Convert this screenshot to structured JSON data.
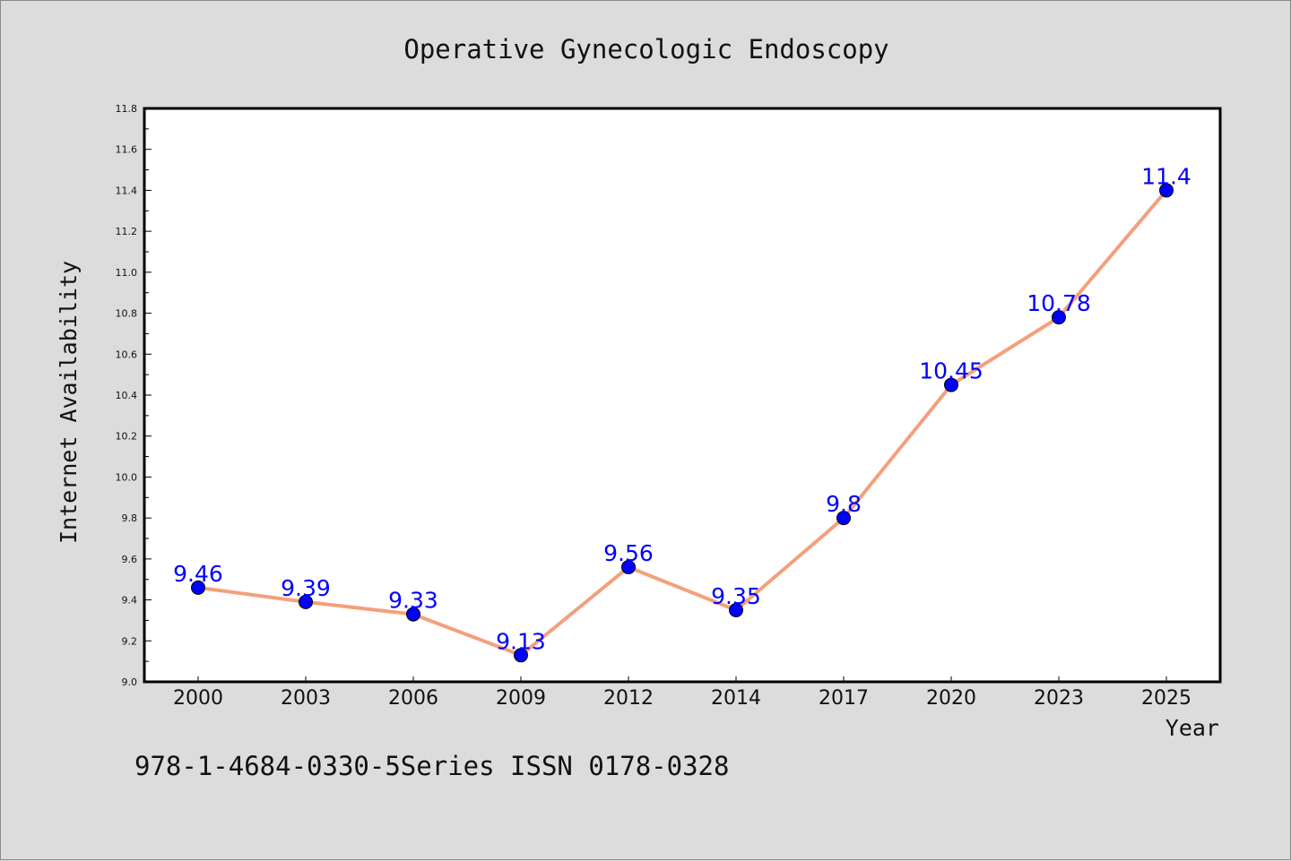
{
  "chart_data": {
    "type": "line",
    "title": "Operative Gynecologic Endoscopy",
    "xlabel": "Year",
    "ylabel": "Internet Availability",
    "categories": [
      "2000",
      "2003",
      "2006",
      "2009",
      "2012",
      "2014",
      "2017",
      "2020",
      "2023",
      "2025"
    ],
    "series": [
      {
        "values": [
          9.46,
          9.39,
          9.33,
          9.13,
          9.56,
          9.35,
          9.8,
          10.45,
          10.78,
          11.4
        ],
        "data_labels": [
          "9.46",
          "9.39",
          "9.33",
          "9.13",
          "9.56",
          "9.35",
          "9.8",
          "10.45",
          "10.78",
          "11.4"
        ],
        "line_color": "#f4a07c",
        "marker_color": "#0000ff"
      }
    ],
    "ylim": [
      9.0,
      11.8
    ],
    "yticks": [
      "9.0",
      "9.2",
      "9.4",
      "9.6",
      "9.8",
      "10.0",
      "10.2",
      "10.4",
      "10.6",
      "10.8",
      "11.0",
      "11.2",
      "11.4",
      "11.6",
      "11.8"
    ],
    "grid": false,
    "legend": "none"
  },
  "footer": "978-1-4684-0330-5Series ISSN 0178-0328"
}
